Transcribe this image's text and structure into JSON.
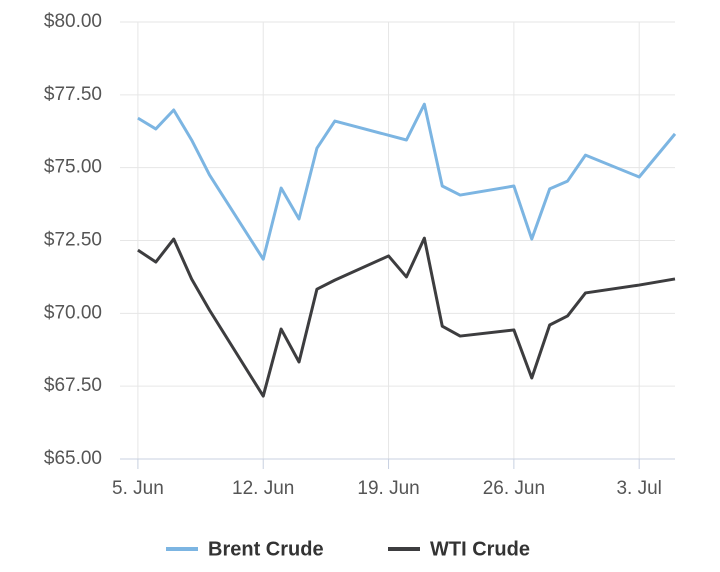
{
  "chart_data": {
    "type": "line",
    "xlim": [
      "06-04",
      "07-05"
    ],
    "xticks": [
      {
        "value": "06-05",
        "label": "5. Jun"
      },
      {
        "value": "06-12",
        "label": "12. Jun"
      },
      {
        "value": "06-19",
        "label": "19. Jun"
      },
      {
        "value": "06-26",
        "label": "26. Jun"
      },
      {
        "value": "07-03",
        "label": "3. Jul"
      }
    ],
    "ylim": [
      65,
      80
    ],
    "yticks": [
      {
        "value": 65,
        "label": "$65.00"
      },
      {
        "value": 67.5,
        "label": "$67.50"
      },
      {
        "value": 70,
        "label": "$70.00"
      },
      {
        "value": 72.5,
        "label": "$72.50"
      },
      {
        "value": 75,
        "label": "$75.00"
      },
      {
        "value": 77.5,
        "label": "$77.50"
      },
      {
        "value": 80,
        "label": "$80.00"
      }
    ],
    "grid": true,
    "series": [
      {
        "name": "Brent Crude",
        "color": "#7cb5e2",
        "x": [
          "06-05",
          "06-06",
          "06-07",
          "06-08",
          "06-09",
          "06-12",
          "06-13",
          "06-14",
          "06-15",
          "06-16",
          "06-20",
          "06-21",
          "06-22",
          "06-23",
          "06-26",
          "06-27",
          "06-28",
          "06-29",
          "06-30",
          "07-03",
          "07-05"
        ],
        "values": [
          76.7,
          76.33,
          76.98,
          75.95,
          74.75,
          71.86,
          74.3,
          73.24,
          75.67,
          76.6,
          75.95,
          77.18,
          74.37,
          74.06,
          74.37,
          72.55,
          74.27,
          74.54,
          75.43,
          74.68,
          76.16
        ]
      },
      {
        "name": "WTI Crude",
        "color": "#3d3d3f",
        "x": [
          "06-05",
          "06-06",
          "06-07",
          "06-08",
          "06-09",
          "06-12",
          "06-13",
          "06-14",
          "06-15",
          "06-16",
          "06-19",
          "06-20",
          "06-21",
          "06-22",
          "06-23",
          "06-26",
          "06-27",
          "06-28",
          "06-29",
          "06-30",
          "07-03",
          "07-05"
        ],
        "values": [
          72.17,
          71.76,
          72.55,
          71.18,
          70.11,
          67.16,
          69.46,
          68.33,
          70.83,
          71.14,
          71.97,
          71.25,
          72.58,
          69.56,
          69.22,
          69.43,
          67.78,
          69.6,
          69.91,
          70.7,
          70.97,
          71.18
        ]
      }
    ]
  }
}
